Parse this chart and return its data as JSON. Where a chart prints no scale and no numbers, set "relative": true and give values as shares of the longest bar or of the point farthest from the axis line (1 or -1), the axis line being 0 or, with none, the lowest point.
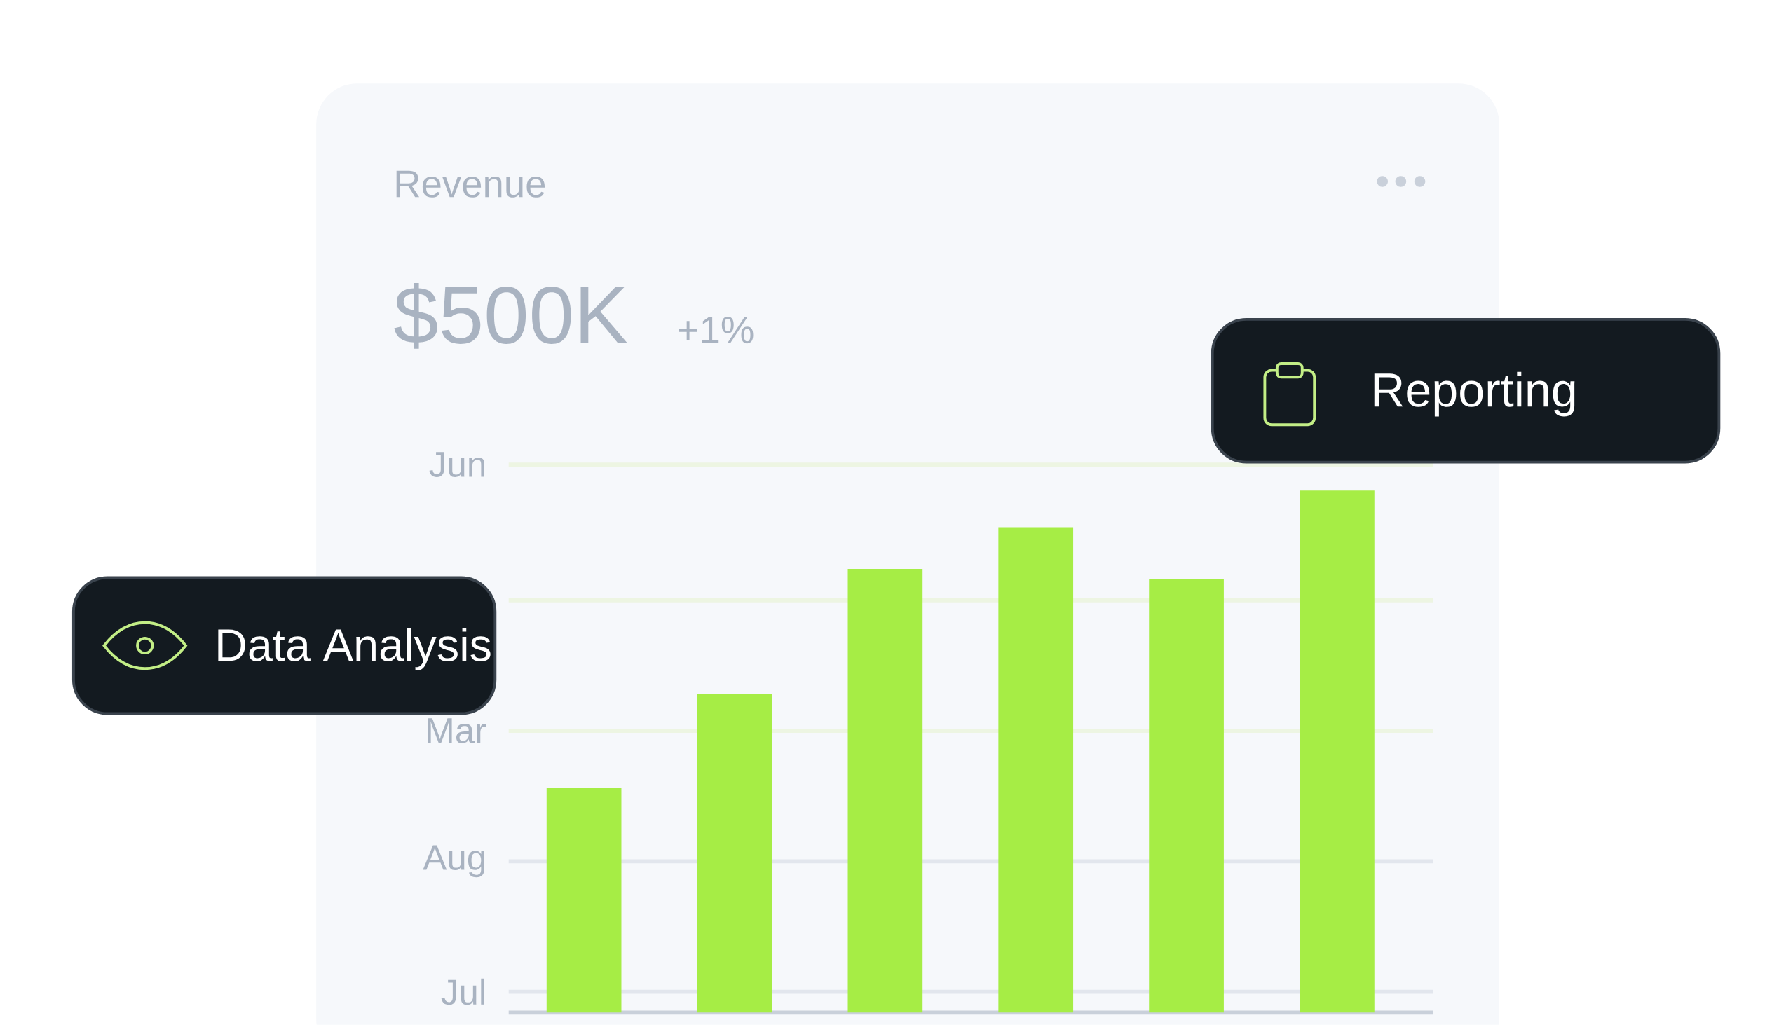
{
  "chart_data": {
    "type": "bar",
    "title": "Revenue",
    "subtitle": "$500K",
    "annotations": [
      "+1%",
      "Data Analysis",
      "Reporting"
    ],
    "categories": [
      null,
      null,
      null,
      null,
      null,
      null
    ],
    "values": [
      0.43,
      0.61,
      0.85,
      0.93,
      0.83,
      1
    ],
    "color": "#a6ed45",
    "relative": true,
    "ref_lines": [
      {
        "axis": "y",
        "value": 1.05,
        "label": "Jun",
        "color": "#edf5e2"
      },
      {
        "axis": "y",
        "value": 0.79,
        "label": null,
        "color": "#edf5e2"
      },
      {
        "axis": "y",
        "value": 0.54,
        "label": "Mar",
        "color": "#edf5e2"
      },
      {
        "axis": "y",
        "value": 0.29,
        "label": "Aug",
        "color": "#e2e6ed"
      },
      {
        "axis": "y",
        "value": 0.04,
        "label": "Jul",
        "color": "#e2e6ed"
      }
    ]
  }
}
